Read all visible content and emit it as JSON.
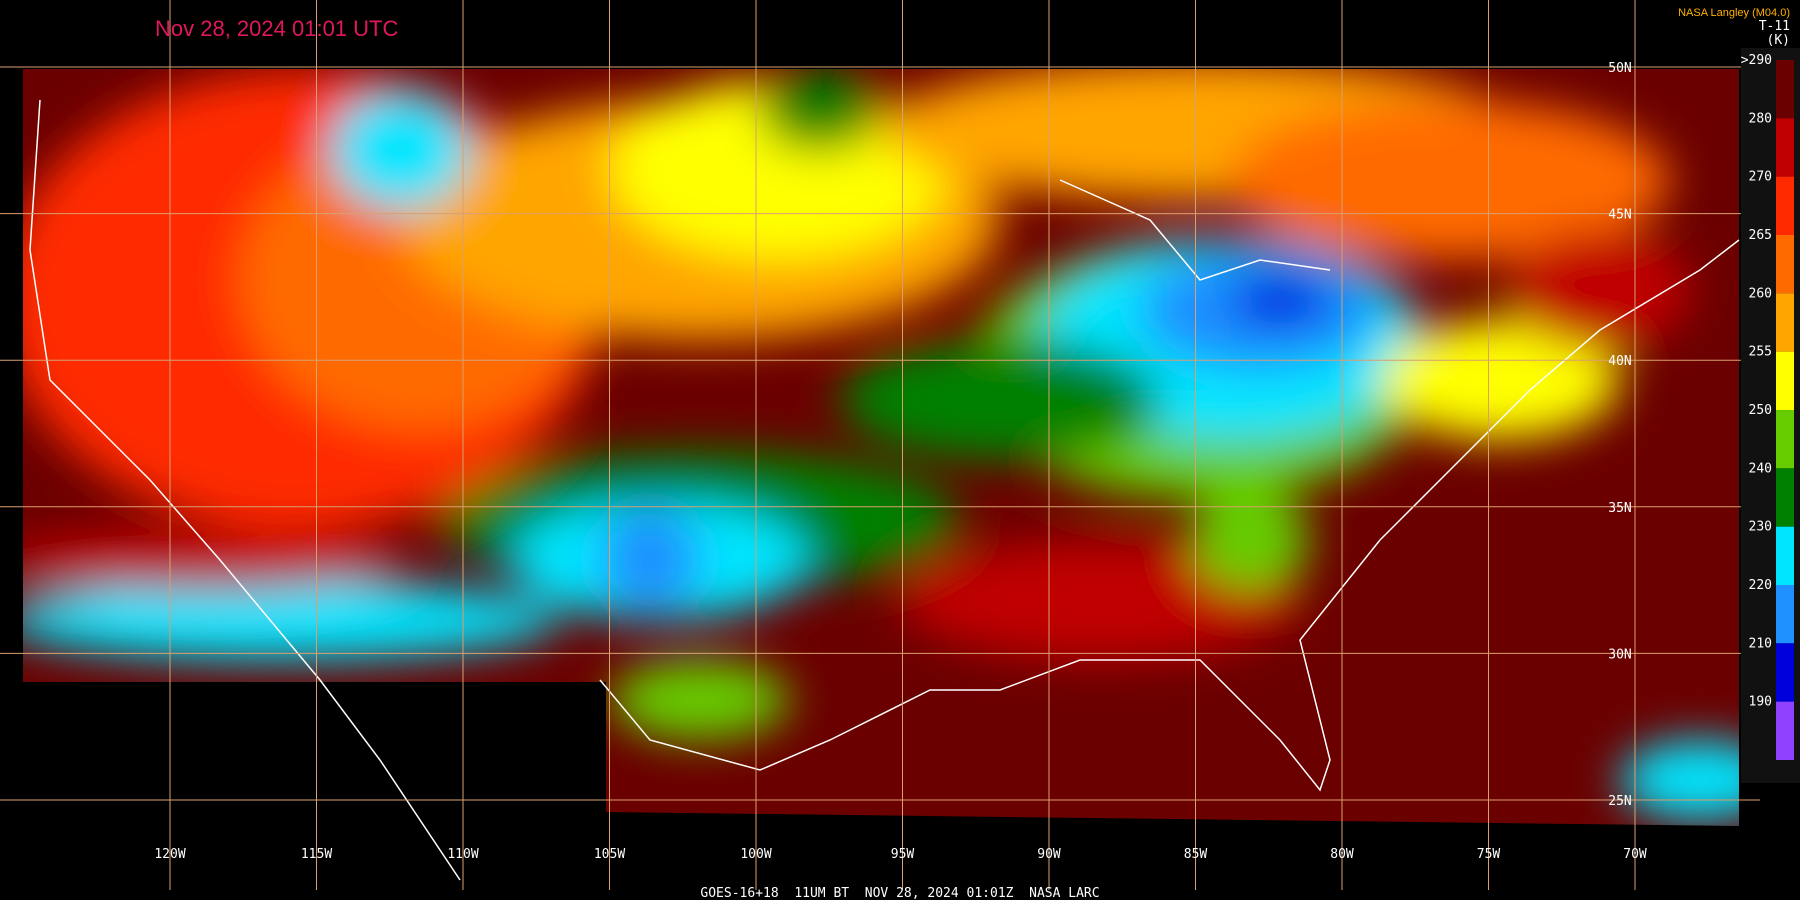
{
  "header": {
    "title": "Nov 28, 2024 01:01 UTC",
    "credit": "NASA Langley (M04.0)",
    "product": "T-11",
    "units": "(K)"
  },
  "colorbar": {
    "labels": [
      ">290",
      "280",
      "270",
      "265",
      "260",
      "255",
      "250",
      "240",
      "230",
      "220",
      "210",
      "190"
    ],
    "colors": [
      "#6b0000",
      "#c00000",
      "#ff2a00",
      "#ff6a00",
      "#ffa500",
      "#ffff00",
      "#66cc00",
      "#008000",
      "#00e5ff",
      "#1e90ff",
      "#0000dd",
      "#9040ff"
    ]
  },
  "longitudes": [
    "120W",
    "115W",
    "110W",
    "105W",
    "100W",
    "95W",
    "90W",
    "85W",
    "80W",
    "75W",
    "70W"
  ],
  "latitudes": [
    "50N",
    "45N",
    "40N",
    "35N",
    "30N",
    "25N"
  ],
  "footer": "GOES-16+18  11UM BT  NOV 28, 2024 01:01Z  NASA LARC"
}
